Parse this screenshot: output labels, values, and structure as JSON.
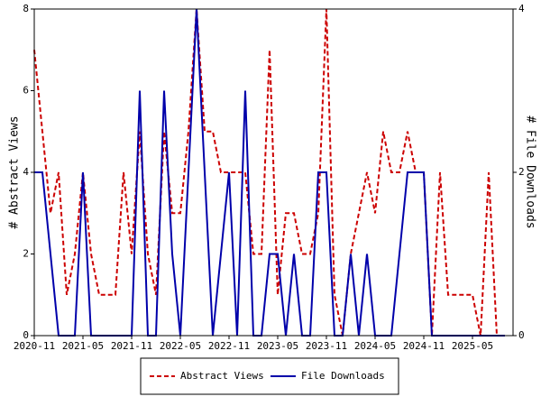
{
  "chart_data": {
    "type": "line",
    "categories": [
      "2020-11",
      null,
      null,
      null,
      null,
      null,
      "2021-05",
      null,
      null,
      null,
      null,
      null,
      "2021-11",
      null,
      null,
      null,
      null,
      null,
      "2022-05",
      null,
      null,
      null,
      null,
      null,
      "2022-11",
      null,
      null,
      null,
      null,
      null,
      "2023-05",
      null,
      null,
      null,
      null,
      null,
      "2023-11",
      null,
      null,
      null,
      null,
      null,
      "2024-05",
      null,
      null,
      null,
      null,
      null,
      "2024-11",
      null,
      null,
      null,
      null,
      null,
      "2025-05",
      null,
      null,
      null,
      null,
      null
    ],
    "series": [
      {
        "name": "Abstract Views",
        "color": "#cc0000",
        "dash": true,
        "values": [
          7,
          5,
          3,
          4,
          1,
          2,
          4,
          2,
          1,
          1,
          1,
          4,
          2,
          5,
          2,
          1,
          5,
          3,
          3,
          5,
          8,
          5,
          5,
          4,
          4,
          4,
          4,
          2,
          2,
          7,
          1,
          3,
          3,
          2,
          2,
          3,
          8,
          1,
          0,
          2,
          3,
          4,
          3,
          5,
          4,
          4,
          5,
          4,
          4,
          0,
          4,
          1,
          1,
          1,
          1,
          0,
          4,
          0,
          null,
          null
        ]
      },
      {
        "name": "File Downloads",
        "color": "#0000aa",
        "axis": "y2",
        "values": [
          2,
          2,
          1,
          0,
          0,
          0,
          2,
          0,
          0,
          0,
          0,
          0,
          0,
          3,
          0,
          0,
          3,
          1,
          0,
          2,
          4,
          2,
          0,
          1,
          2,
          0,
          3,
          0,
          0,
          1,
          1,
          0,
          1,
          0,
          0,
          2,
          2,
          0,
          0,
          1,
          0,
          1,
          0,
          0,
          0,
          1,
          2,
          2,
          2,
          0,
          0,
          0,
          0,
          0,
          0,
          0,
          0,
          0,
          0,
          null
        ]
      }
    ],
    "ylabel": "# Abstract Views",
    "y2label": "# File Downloads",
    "ylim": [
      0,
      8
    ],
    "yticks": [
      0,
      2,
      4,
      6,
      8
    ],
    "y2lim": [
      0,
      4
    ],
    "y2ticks": [
      0,
      2,
      4
    ]
  }
}
